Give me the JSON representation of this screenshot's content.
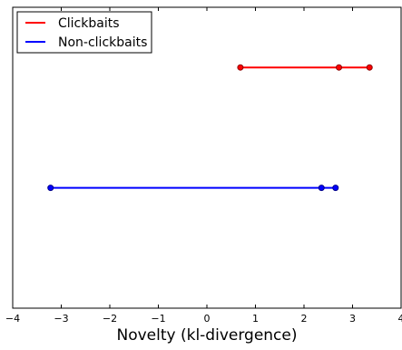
{
  "chart_data": {
    "type": "line",
    "title": "",
    "xlabel": "Novelty (kl-divergence)",
    "ylabel": "",
    "xlim": [
      -4,
      4
    ],
    "xticks": [
      -4,
      -3,
      -2,
      -1,
      0,
      1,
      2,
      3,
      4
    ],
    "xtick_labels": [
      "−4",
      "−3",
      "−2",
      "−1",
      "0",
      "1",
      "2",
      "3",
      "4"
    ],
    "grid": false,
    "legend": {
      "placement": "top-left",
      "entries": [
        "Clickbaits",
        "Non-clickbaits"
      ]
    },
    "series": [
      {
        "name": "Clickbaits",
        "color": "#ff0000",
        "marker_edge_color": "#8b0000",
        "level": 0.8,
        "x": [
          0.69,
          2.72,
          3.35
        ]
      },
      {
        "name": "Non-clickbaits",
        "color": "#0000ff",
        "marker_edge_color": "#00008b",
        "level": 0.4,
        "x": [
          -3.22,
          2.36,
          2.65
        ]
      }
    ]
  }
}
